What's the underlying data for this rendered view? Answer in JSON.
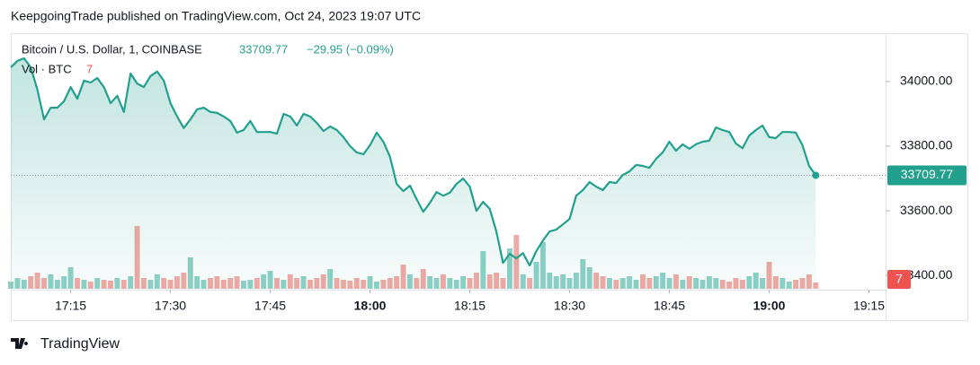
{
  "header": "KeepgoingTrade published on TradingView.com, Oct 24, 2023 19:07 UTC",
  "footer": "TradingView",
  "chart_data": {
    "type": "area",
    "symbol": "Bitcoin / U.S. Dollar, 1, COINBASE",
    "change": "−29.95 (−0.09%)",
    "volume_label": "Vol · BTC",
    "color": "#22a08e",
    "volume_up_color": "#8ed0c6",
    "volume_down_color": "#f2a9a4",
    "change_down_color": "#ef5350",
    "x": [
      1026,
      1027,
      1028,
      1029,
      1030,
      1031,
      1032,
      1033,
      1034,
      1035,
      1036,
      1037,
      1038,
      1039,
      1040,
      1041,
      1042,
      1043,
      1044,
      1045,
      1046,
      1047,
      1048,
      1049,
      1050,
      1051,
      1052,
      1053,
      1054,
      1055,
      1056,
      1057,
      1058,
      1059,
      1060,
      1061,
      1062,
      1063,
      1064,
      1065,
      1066,
      1067,
      1068,
      1069,
      1070,
      1071,
      1072,
      1073,
      1074,
      1075,
      1076,
      1077,
      1078,
      1079,
      1080,
      1081,
      1082,
      1083,
      1084,
      1085,
      1086,
      1087,
      1088,
      1089,
      1090,
      1091,
      1092,
      1093,
      1094,
      1095,
      1096,
      1097,
      1098,
      1099,
      1100,
      1101,
      1102,
      1103,
      1104,
      1105,
      1106,
      1107,
      1108,
      1109,
      1110,
      1111,
      1112,
      1113,
      1114,
      1115,
      1116,
      1117,
      1118,
      1119,
      1120,
      1121,
      1122,
      1123,
      1124,
      1125,
      1126,
      1127,
      1128,
      1129,
      1130,
      1131,
      1132,
      1133,
      1134,
      1135,
      1136,
      1137,
      1138,
      1139,
      1140,
      1141,
      1142,
      1143,
      1144,
      1145,
      1146,
      1147
    ],
    "values": [
      34044,
      34064,
      34072,
      34044,
      33975,
      33883,
      33919,
      33919,
      33939,
      33983,
      33947,
      34003,
      33997,
      34011,
      33983,
      33933,
      33956,
      33906,
      34025,
      33994,
      33983,
      34017,
      34031,
      34003,
      33933,
      33892,
      33856,
      33883,
      33914,
      33919,
      33906,
      33903,
      33892,
      33878,
      33842,
      33850,
      33878,
      33844,
      33844,
      33844,
      33839,
      33900,
      33892,
      33864,
      33900,
      33892,
      33872,
      33847,
      33861,
      33850,
      33828,
      33800,
      33781,
      33775,
      33803,
      33842,
      33814,
      33767,
      33683,
      33661,
      33678,
      33636,
      33597,
      33625,
      33658,
      33647,
      33656,
      33683,
      33700,
      33675,
      33600,
      33628,
      33606,
      33536,
      33439,
      33467,
      33453,
      33469,
      33431,
      33475,
      33508,
      33536,
      33542,
      33558,
      33575,
      33647,
      33664,
      33689,
      33675,
      33664,
      33689,
      33686,
      33711,
      33722,
      33742,
      33739,
      33733,
      33761,
      33781,
      33814,
      33786,
      33806,
      33792,
      33806,
      33814,
      33817,
      33858,
      33850,
      33844,
      33808,
      33794,
      33833,
      33850,
      33864,
      33828,
      33825,
      33844,
      33844,
      33842,
      33803,
      33739,
      33709.77
    ],
    "volume": [
      8,
      12,
      10,
      14,
      18,
      12,
      16,
      10,
      14,
      24,
      12,
      10,
      8,
      12,
      10,
      9,
      12,
      10,
      14,
      70,
      12,
      10,
      16,
      12,
      10,
      14,
      18,
      35,
      14,
      10,
      12,
      14,
      10,
      12,
      14,
      9,
      10,
      12,
      16,
      20,
      12,
      10,
      16,
      12,
      14,
      10,
      12,
      16,
      22,
      12,
      10,
      9,
      12,
      10,
      14,
      8,
      10,
      12,
      14,
      27,
      16,
      12,
      22,
      14,
      12,
      16,
      12,
      10,
      14,
      12,
      18,
      42,
      16,
      18,
      12,
      45,
      60,
      16,
      12,
      30,
      52,
      18,
      14,
      16,
      12,
      18,
      33,
      24,
      18,
      14,
      12,
      10,
      12,
      14,
      10,
      16,
      12,
      14,
      18,
      12,
      16,
      10,
      14,
      12,
      10,
      14,
      12,
      10,
      8,
      12,
      10,
      14,
      18,
      12,
      30,
      14,
      12,
      8,
      10,
      12,
      16,
      7
    ],
    "xlim": [
      1026,
      1157.5
    ],
    "ylim": [
      33356,
      34147
    ],
    "volume_lim": [
      0,
      100
    ],
    "yticks": [
      {
        "value": 34000,
        "label": "34000.00"
      },
      {
        "value": 33800,
        "label": "33800.00"
      },
      {
        "value": 33600,
        "label": "33600.00"
      },
      {
        "value": 33400,
        "label": "33400.00"
      }
    ],
    "xticks": [
      {
        "value": 1035,
        "label": "17:15"
      },
      {
        "value": 1050,
        "label": "17:30"
      },
      {
        "value": 1065,
        "label": "17:45"
      },
      {
        "value": 1080,
        "label": "18:00",
        "bold": true
      },
      {
        "value": 1095,
        "label": "18:15"
      },
      {
        "value": 1110,
        "label": "18:30"
      },
      {
        "value": 1125,
        "label": "18:45"
      },
      {
        "value": 1140,
        "label": "19:00",
        "bold": true
      },
      {
        "value": 1155,
        "label": "19:15"
      }
    ]
  }
}
